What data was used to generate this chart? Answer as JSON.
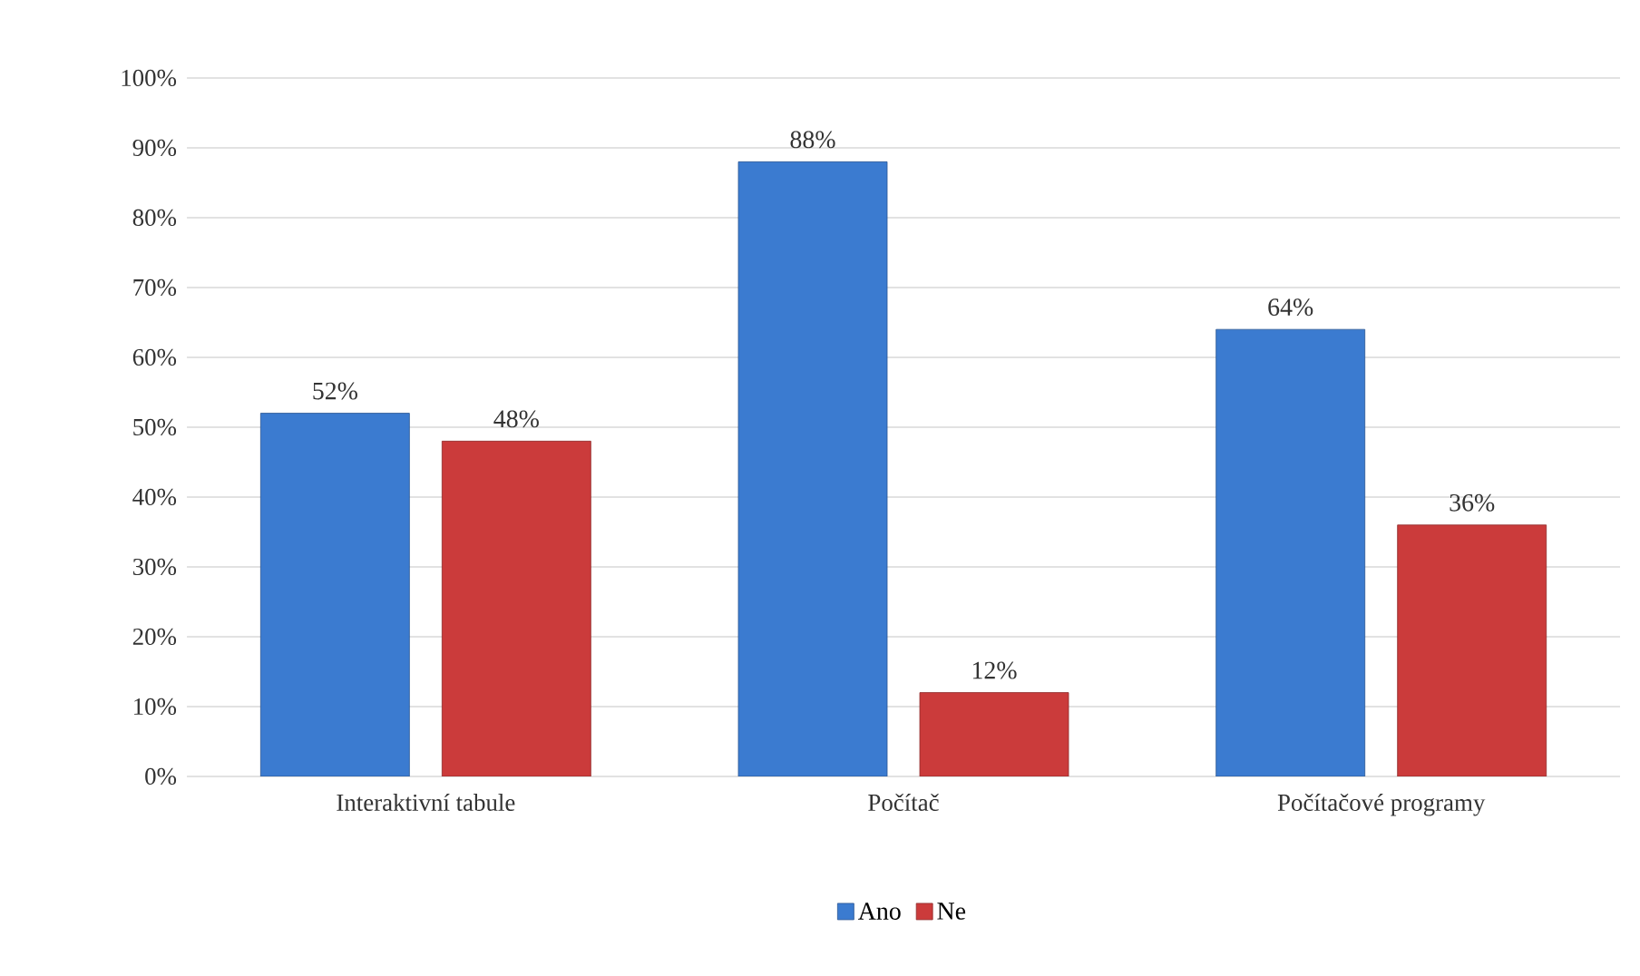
{
  "chart_data": {
    "type": "bar",
    "categories": [
      "Interaktivní tabule",
      "Počítač",
      "Počítačové programy"
    ],
    "series": [
      {
        "name": "Ano",
        "color": "#3b7bd0",
        "values": [
          52,
          88,
          64
        ],
        "value_labels": [
          "52%",
          "88%",
          "64%"
        ]
      },
      {
        "name": "Ne",
        "color": "#cb3b3b",
        "values": [
          48,
          12,
          36
        ],
        "value_labels": [
          "48%",
          "12%",
          "36%"
        ]
      }
    ],
    "ylim": [
      0,
      100
    ],
    "yticks": [
      {
        "value": 0,
        "label": "0%"
      },
      {
        "value": 10,
        "label": "10%"
      },
      {
        "value": 20,
        "label": "20%"
      },
      {
        "value": 30,
        "label": "30%"
      },
      {
        "value": 40,
        "label": "40%"
      },
      {
        "value": 50,
        "label": "50%"
      },
      {
        "value": 60,
        "label": "60%"
      },
      {
        "value": 70,
        "label": "70%"
      },
      {
        "value": 80,
        "label": "80%"
      },
      {
        "value": 90,
        "label": "90%"
      },
      {
        "value": 100,
        "label": "100%"
      }
    ],
    "grid": "y",
    "legend": "bottom"
  }
}
